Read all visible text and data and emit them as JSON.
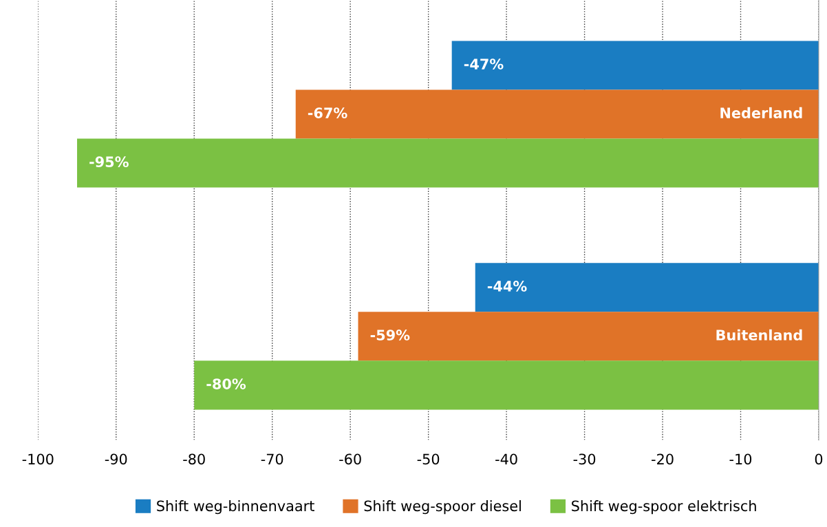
{
  "chart_data": {
    "type": "bar",
    "orientation": "horizontal",
    "categories": [
      "Nederland",
      "Buitenland"
    ],
    "series": [
      {
        "name": "Shift weg-binnenvaart",
        "color": "#1a7dc2",
        "values": [
          -47,
          -44
        ],
        "value_labels": [
          "-47%",
          "-44%"
        ]
      },
      {
        "name": "Shift weg-spoor diesel",
        "color": "#e07328",
        "values": [
          -67,
          -59
        ],
        "value_labels": [
          "-67%",
          "-59%"
        ]
      },
      {
        "name": "Shift weg-spoor elektrisch",
        "color": "#7bc143",
        "values": [
          -95,
          -80
        ],
        "value_labels": [
          "-95%",
          "-80%"
        ]
      }
    ],
    "xlim": [
      -100,
      0
    ],
    "xticks": [
      -100,
      -90,
      -80,
      -70,
      -60,
      -50,
      -40,
      -30,
      -20,
      -10,
      0
    ],
    "grid": "x",
    "legend": "bottom",
    "line_style": "dotted"
  }
}
